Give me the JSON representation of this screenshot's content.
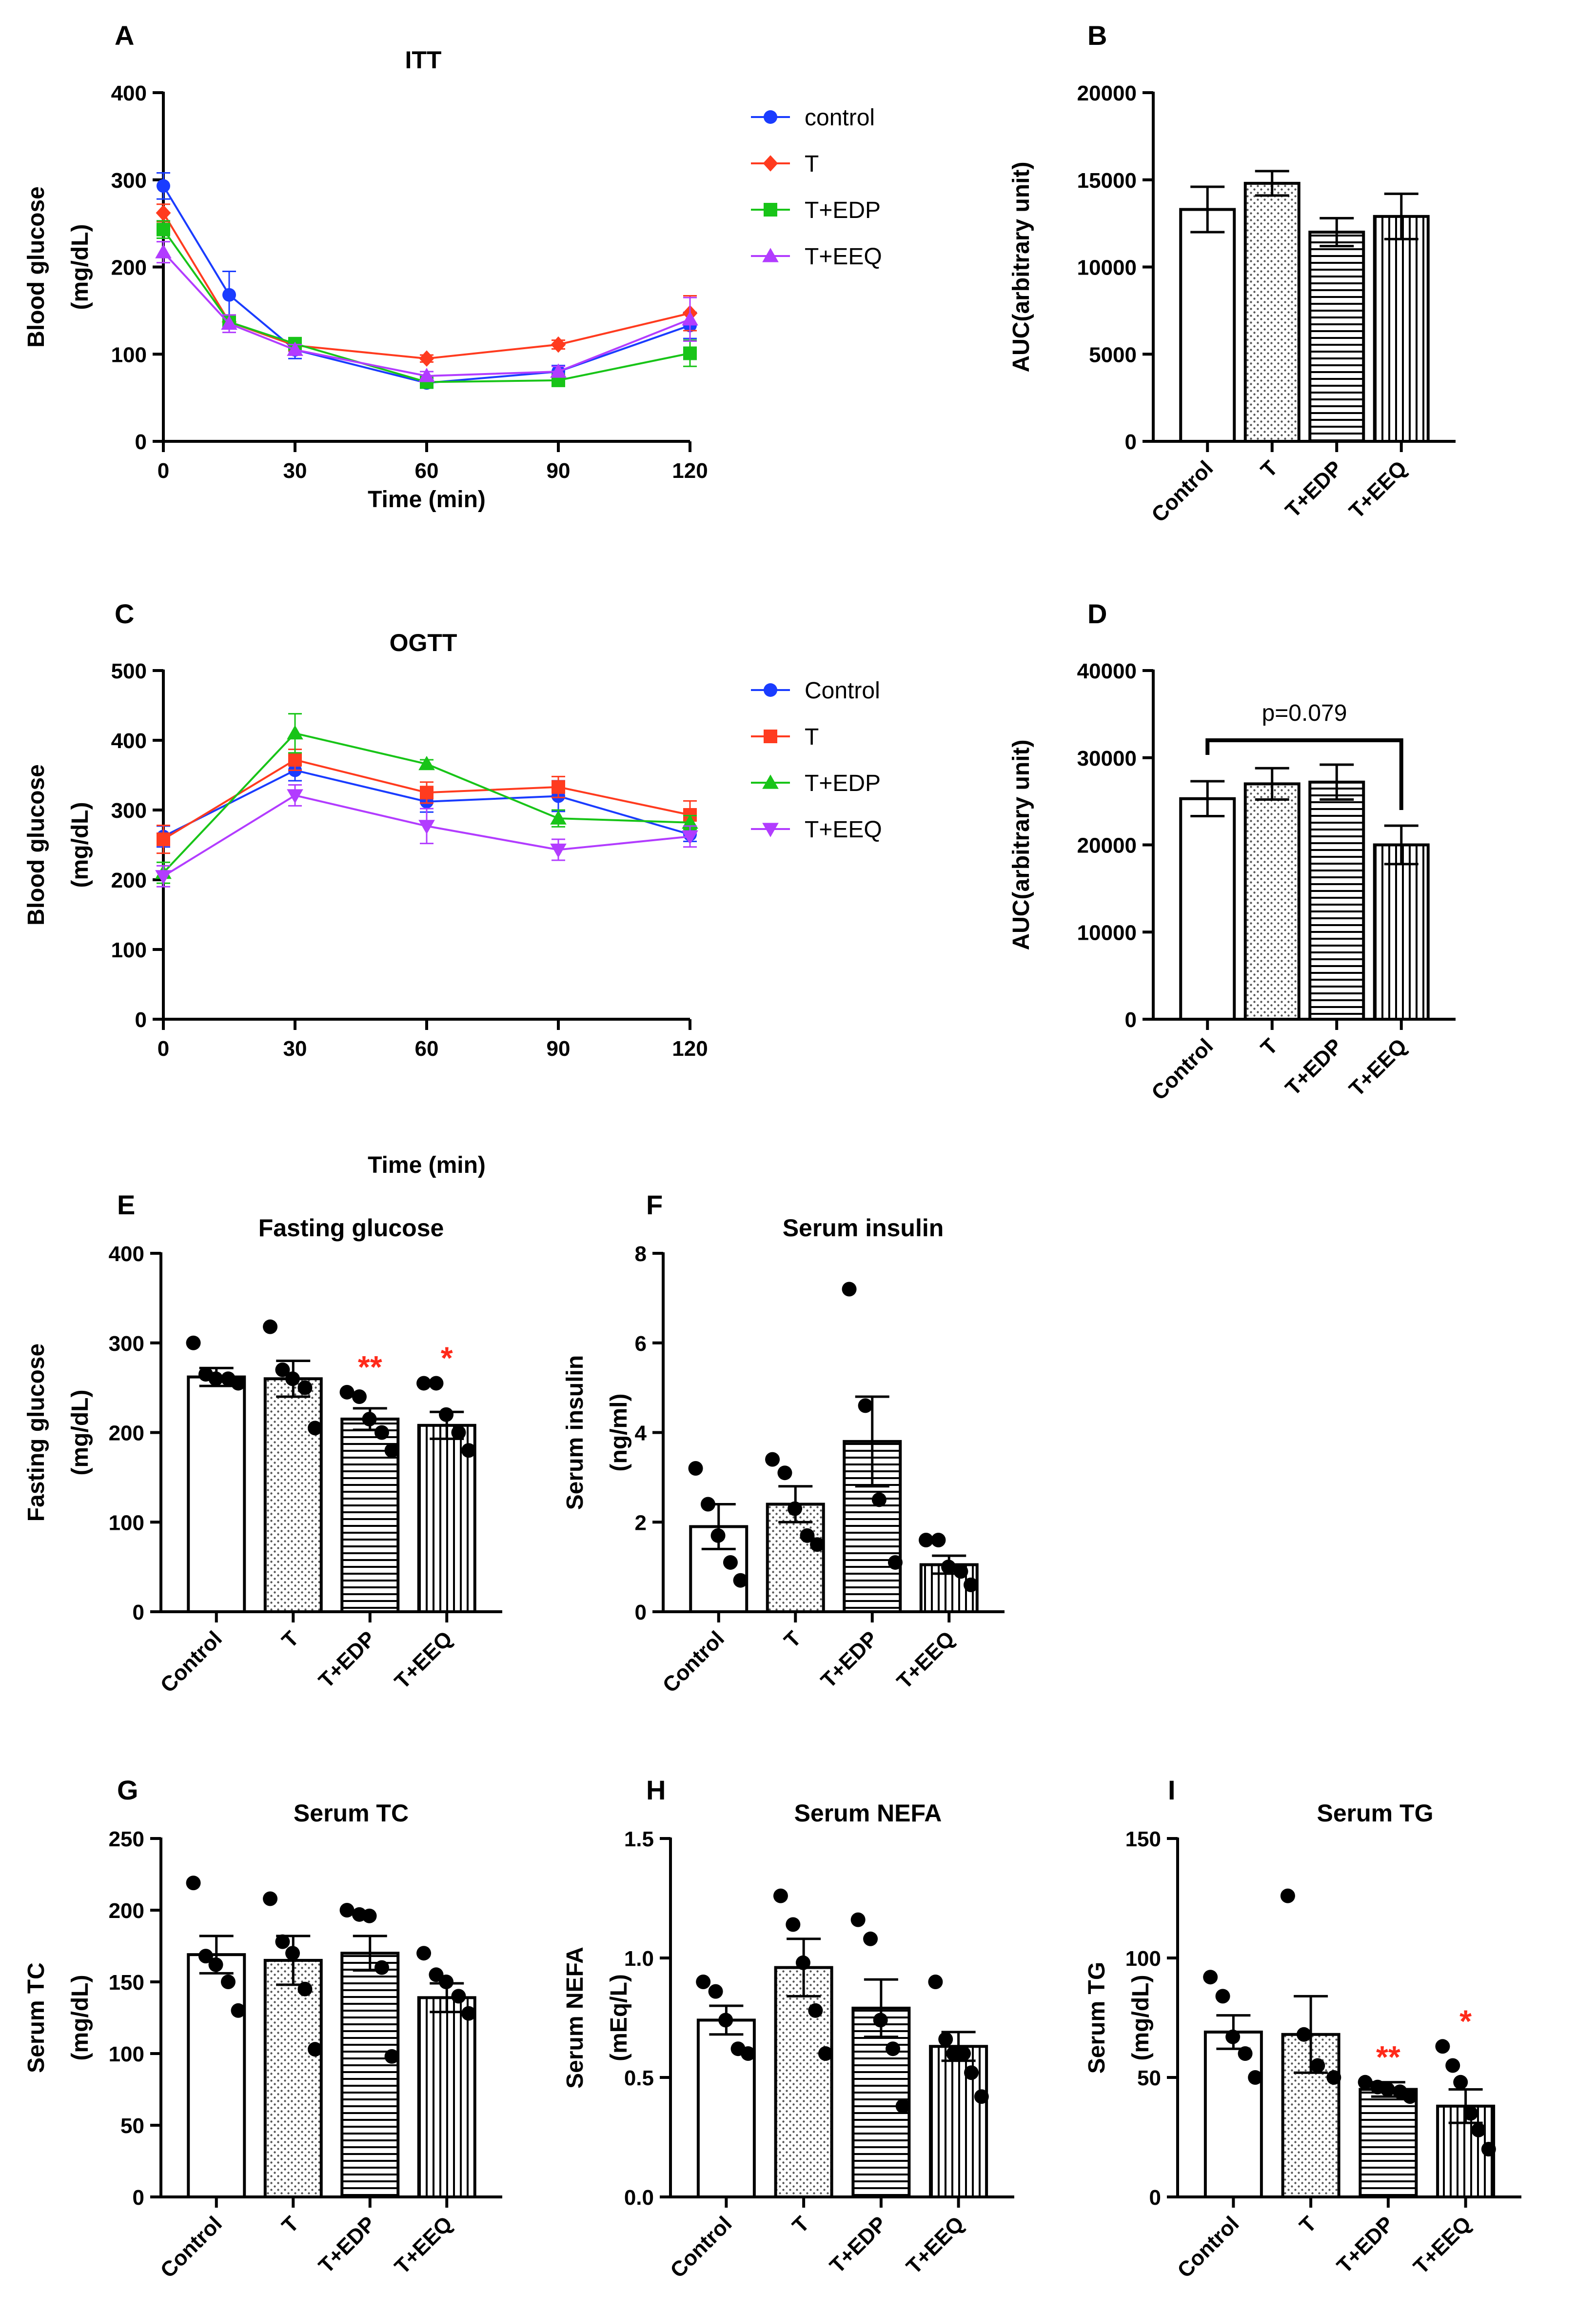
{
  "figure": {
    "group_colors": {
      "Control": "#1a3cff",
      "T": "#ff3b1f",
      "T+EDP": "#18c418",
      "T+EEQ": "#b23cff"
    },
    "bar_patterns": [
      "white",
      "dots",
      "horizontal-lines",
      "vertical-lines"
    ],
    "significance_color": "#ff2a1a"
  },
  "chart_data": [
    {
      "id": "A",
      "panel_label": "A",
      "type": "line",
      "title": "ITT",
      "xlabel": "Time (min)",
      "ylabel_lines": [
        "Blood glucose",
        "(mg/dL)"
      ],
      "xlim": [
        0,
        120
      ],
      "ylim": [
        0,
        400
      ],
      "x_ticks": [
        0,
        30,
        60,
        90,
        120
      ],
      "y_ticks": [
        0,
        100,
        200,
        300,
        400
      ],
      "legend": "right",
      "x": [
        0,
        15,
        30,
        60,
        90,
        120
      ],
      "series": [
        {
          "name": "control",
          "color": "#1a3cff",
          "marker": "circle",
          "values": [
            293,
            168,
            105,
            67,
            80,
            133
          ],
          "errors": [
            15,
            27,
            10,
            6,
            7,
            15
          ]
        },
        {
          "name": "T",
          "color": "#ff3b1f",
          "marker": "diamond",
          "values": [
            262,
            137,
            110,
            95,
            111,
            147
          ],
          "errors": [
            10,
            8,
            6,
            4,
            5,
            20
          ]
        },
        {
          "name": "T+EDP",
          "color": "#18c418",
          "marker": "square",
          "values": [
            243,
            137,
            112,
            68,
            70,
            101
          ],
          "errors": [
            10,
            8,
            6,
            5,
            6,
            15
          ]
        },
        {
          "name": "T+EEQ",
          "color": "#b23cff",
          "marker": "triangle-up",
          "values": [
            217,
            135,
            105,
            75,
            80,
            140
          ],
          "errors": [
            12,
            10,
            6,
            5,
            6,
            25
          ]
        }
      ]
    },
    {
      "id": "B",
      "panel_label": "B",
      "type": "bar",
      "title": "",
      "ylabel_lines": [
        "AUC(arbitrary unit)"
      ],
      "ylim": [
        0,
        20000
      ],
      "y_ticks": [
        0,
        5000,
        10000,
        15000,
        20000
      ],
      "categories": [
        "Control",
        "T",
        "T+EDP",
        "T+EEQ"
      ],
      "values": [
        13300,
        14800,
        12000,
        12900
      ],
      "errors": [
        1300,
        700,
        800,
        1300
      ]
    },
    {
      "id": "C",
      "panel_label": "C",
      "type": "line",
      "title": "OGTT",
      "xlabel": "Time (min)",
      "ylabel_lines": [
        "Blood glucose",
        "(mg/dL)"
      ],
      "xlim": [
        0,
        120
      ],
      "ylim": [
        0,
        500
      ],
      "x_ticks": [
        0,
        30,
        60,
        90,
        120
      ],
      "y_ticks": [
        0,
        100,
        200,
        300,
        400,
        500
      ],
      "legend": "right",
      "x": [
        0,
        30,
        60,
        90,
        120
      ],
      "series": [
        {
          "name": "Control",
          "color": "#1a3cff",
          "marker": "circle",
          "values": [
            262,
            357,
            312,
            320,
            265
          ],
          "errors": [
            15,
            15,
            15,
            22,
            10
          ]
        },
        {
          "name": "T",
          "color": "#ff3b1f",
          "marker": "square",
          "values": [
            258,
            372,
            325,
            333,
            293
          ],
          "errors": [
            20,
            15,
            15,
            15,
            20
          ]
        },
        {
          "name": "T+EDP",
          "color": "#18c418",
          "marker": "triangle-up",
          "values": [
            210,
            410,
            366,
            288,
            282
          ],
          "errors": [
            15,
            28,
            6,
            12,
            10
          ]
        },
        {
          "name": "T+EEQ",
          "color": "#b23cff",
          "marker": "triangle-down",
          "values": [
            205,
            321,
            277,
            243,
            262
          ],
          "errors": [
            15,
            15,
            25,
            15,
            15
          ]
        }
      ]
    },
    {
      "id": "D",
      "panel_label": "D",
      "type": "bar",
      "title": "",
      "ylabel_lines": [
        "AUC(arbitrary unit)"
      ],
      "ylim": [
        0,
        40000
      ],
      "y_ticks": [
        0,
        10000,
        20000,
        30000,
        40000
      ],
      "categories": [
        "Control",
        "T",
        "T+EDP",
        "T+EEQ"
      ],
      "values": [
        25300,
        27000,
        27200,
        20000
      ],
      "errors": [
        2000,
        1800,
        2000,
        2200
      ],
      "annotations": [
        {
          "text": "p=0.079",
          "from": 0,
          "to": 3,
          "bracket_value": 32000
        }
      ]
    },
    {
      "id": "E",
      "panel_label": "E",
      "type": "bar",
      "title": "Fasting glucose",
      "ylabel_lines": [
        "Fasting glucose",
        "(mg/dL)"
      ],
      "ylim": [
        0,
        400
      ],
      "y_ticks": [
        0,
        100,
        200,
        300,
        400
      ],
      "categories": [
        "Control",
        "T",
        "T+EDP",
        "T+EEQ"
      ],
      "values": [
        262,
        260,
        215,
        208
      ],
      "errors": [
        10,
        20,
        12,
        15
      ],
      "points": [
        [
          300,
          265,
          260,
          260,
          255
        ],
        [
          318,
          270,
          260,
          250,
          205
        ],
        [
          245,
          240,
          215,
          200,
          180
        ],
        [
          255,
          255,
          220,
          200,
          180
        ]
      ],
      "significance": [
        "",
        "",
        "**",
        "*"
      ]
    },
    {
      "id": "F",
      "panel_label": "F",
      "type": "bar",
      "title": "Serum insulin",
      "ylabel_lines": [
        "Serum insulin",
        "(ng/ml)"
      ],
      "ylim": [
        0,
        8
      ],
      "y_ticks": [
        0,
        2,
        4,
        6,
        8
      ],
      "categories": [
        "Control",
        "T",
        "T+EDP",
        "T+EEQ"
      ],
      "values": [
        1.9,
        2.4,
        3.8,
        1.05
      ],
      "errors": [
        0.5,
        0.4,
        1.0,
        0.2
      ],
      "points": [
        [
          3.2,
          2.4,
          1.7,
          1.1,
          0.7
        ],
        [
          3.4,
          3.1,
          2.3,
          1.7,
          1.5
        ],
        [
          7.2,
          4.6,
          2.5,
          1.1
        ],
        [
          1.6,
          1.6,
          1.0,
          0.9,
          0.6
        ]
      ]
    },
    {
      "id": "G",
      "panel_label": "G",
      "type": "bar",
      "title": "Serum TC",
      "ylabel_lines": [
        "Serum TC",
        "(mg/dL)"
      ],
      "ylim": [
        0,
        250
      ],
      "y_ticks": [
        0,
        50,
        100,
        150,
        200,
        250
      ],
      "categories": [
        "Control",
        "T",
        "T+EDP",
        "T+EEQ"
      ],
      "values": [
        169,
        165,
        170,
        139
      ],
      "errors": [
        13,
        17,
        12,
        10
      ],
      "points": [
        [
          219,
          168,
          162,
          150,
          130
        ],
        [
          208,
          178,
          170,
          145,
          103
        ],
        [
          200,
          197,
          196,
          160,
          98
        ],
        [
          170,
          155,
          150,
          140,
          128
        ]
      ]
    },
    {
      "id": "H",
      "panel_label": "H",
      "type": "bar",
      "title": "Serum NEFA",
      "ylabel_lines": [
        "Serum NEFA",
        "(mEq/L)"
      ],
      "ylim": [
        0,
        1.5
      ],
      "y_ticks": [
        "0.0",
        "0.5",
        "1.0",
        "1.5"
      ],
      "categories": [
        "Control",
        "T",
        "T+EDP",
        "T+EEQ"
      ],
      "values": [
        0.74,
        0.96,
        0.79,
        0.63
      ],
      "errors": [
        0.06,
        0.12,
        0.12,
        0.06
      ],
      "points": [
        [
          0.9,
          0.86,
          0.74,
          0.62,
          0.6
        ],
        [
          1.26,
          1.14,
          0.98,
          0.78,
          0.6
        ],
        [
          1.16,
          1.08,
          0.74,
          0.62,
          0.38
        ],
        [
          0.9,
          0.66,
          0.6,
          0.6,
          0.52,
          0.42
        ]
      ]
    },
    {
      "id": "I",
      "panel_label": "I",
      "type": "bar",
      "title": "Serum TG",
      "ylabel_lines": [
        "Serum TG",
        "(mg/dL)"
      ],
      "ylim": [
        0,
        150
      ],
      "y_ticks": [
        0,
        50,
        100,
        150
      ],
      "categories": [
        "Control",
        "T",
        "T+EDP",
        "T+EEQ"
      ],
      "values": [
        69,
        68,
        45,
        38
      ],
      "errors": [
        7,
        16,
        3,
        7
      ],
      "points": [
        [
          92,
          84,
          67,
          60,
          50
        ],
        [
          126,
          68,
          55,
          50
        ],
        [
          48,
          46,
          45,
          44,
          42
        ],
        [
          63,
          55,
          48,
          35,
          28,
          20
        ]
      ],
      "significance": [
        "",
        "",
        "**",
        "*"
      ]
    }
  ]
}
